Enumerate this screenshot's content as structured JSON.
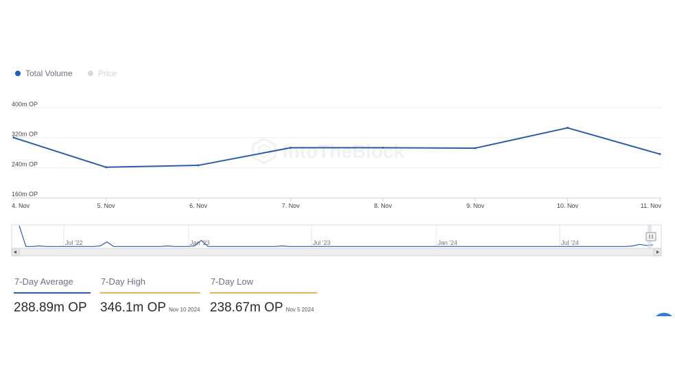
{
  "legend": {
    "items": [
      {
        "label": "Total Volume",
        "color": "#1f5fbf",
        "active": true
      },
      {
        "label": "Price",
        "color": "#d1d5db",
        "active": false
      }
    ]
  },
  "watermark": "IntoTheBlock",
  "chart_data": {
    "type": "line",
    "x": [
      "4. Nov",
      "5. Nov",
      "6. Nov",
      "7. Nov",
      "8. Nov",
      "9. Nov",
      "10. Nov",
      "11. Nov"
    ],
    "series": [
      {
        "name": "Total Volume",
        "color": "#2a5ca8",
        "values": [
          320,
          241,
          246,
          293,
          293,
          292,
          346.1,
          276
        ]
      }
    ],
    "y_ticks": [
      "400m OP",
      "320m OP",
      "240m OP",
      "160m OP"
    ],
    "y_tick_values": [
      400,
      320,
      240,
      160
    ],
    "ylim": [
      160,
      400
    ],
    "grid": true,
    "navigator": {
      "labels": [
        "Jul '22",
        "Jan '23",
        "Jul '23",
        "Jan '24",
        "Jul '24"
      ],
      "series": [
        42,
        1,
        1,
        2,
        1,
        1,
        1,
        1,
        1,
        1,
        1,
        1,
        2,
        10,
        1,
        1,
        1,
        1,
        1,
        1,
        1,
        1,
        2,
        1,
        1,
        1,
        2,
        13,
        1,
        1,
        1,
        1,
        1,
        1,
        1,
        1,
        1,
        1,
        1,
        2,
        1,
        1,
        1,
        1,
        1,
        1,
        1,
        1,
        1,
        1,
        1,
        1,
        1,
        1,
        1,
        1,
        1,
        1,
        1,
        1,
        1,
        1,
        1,
        1,
        1,
        1,
        1,
        1,
        1,
        1,
        1,
        1,
        1,
        1,
        1,
        1,
        1,
        1,
        1,
        1,
        1,
        1,
        1,
        1,
        1,
        1,
        1,
        1,
        1,
        1,
        1,
        2,
        5,
        3,
        4
      ]
    }
  },
  "stats": {
    "average": {
      "label": "7-Day Average",
      "value": "288.89m OP"
    },
    "high": {
      "label": "7-Day High",
      "value": "346.1m OP",
      "date": "Nov 10 2024"
    },
    "low": {
      "label": "7-Day Low",
      "value": "238.67m OP",
      "date": "Nov 5 2024"
    }
  }
}
